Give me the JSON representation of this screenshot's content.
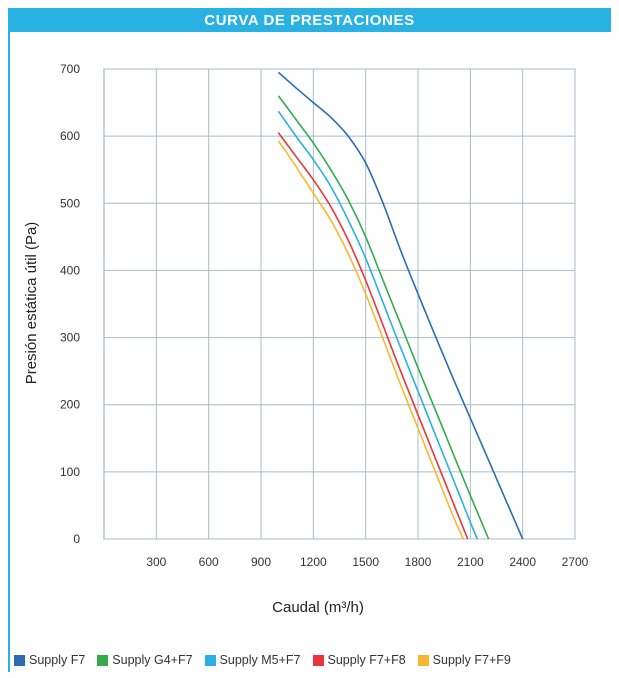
{
  "header": {
    "title": "CURVA DE PRESTACIONES"
  },
  "chart_data": {
    "type": "line",
    "title": "CURVA DE PRESTACIONES",
    "xlabel": "Caudal (m³/h)",
    "ylabel": "Presión estática útil (Pa)",
    "xlim": [
      0,
      2700
    ],
    "ylim": [
      0,
      700
    ],
    "xticks": [
      300,
      600,
      900,
      1200,
      1500,
      1800,
      2100,
      2400,
      2700
    ],
    "yticks": [
      0,
      100,
      200,
      300,
      400,
      500,
      600,
      700
    ],
    "grid": true,
    "legend_position": "bottom",
    "series": [
      {
        "name": "Supply F7",
        "color": "#2a6db5",
        "points": [
          [
            1000,
            695
          ],
          [
            1100,
            672
          ],
          [
            1200,
            650
          ],
          [
            1300,
            628
          ],
          [
            1400,
            600
          ],
          [
            1500,
            560
          ],
          [
            1600,
            500
          ],
          [
            1700,
            430
          ],
          [
            1800,
            365
          ],
          [
            1900,
            302
          ],
          [
            2000,
            240
          ],
          [
            2100,
            180
          ],
          [
            2200,
            120
          ],
          [
            2300,
            60
          ],
          [
            2400,
            0
          ]
        ]
      },
      {
        "name": "Supply G4+F7",
        "color": "#33ac4e",
        "points": [
          [
            1000,
            660
          ],
          [
            1100,
            625
          ],
          [
            1200,
            590
          ],
          [
            1300,
            550
          ],
          [
            1400,
            505
          ],
          [
            1500,
            450
          ],
          [
            1600,
            385
          ],
          [
            1700,
            320
          ],
          [
            1800,
            255
          ],
          [
            1900,
            192
          ],
          [
            2000,
            128
          ],
          [
            2100,
            65
          ],
          [
            2205,
            0
          ]
        ]
      },
      {
        "name": "Supply M5+F7",
        "color": "#29b1e3",
        "points": [
          [
            1000,
            637
          ],
          [
            1100,
            600
          ],
          [
            1200,
            565
          ],
          [
            1300,
            525
          ],
          [
            1400,
            475
          ],
          [
            1500,
            418
          ],
          [
            1600,
            352
          ],
          [
            1700,
            285
          ],
          [
            1800,
            220
          ],
          [
            1900,
            155
          ],
          [
            2000,
            90
          ],
          [
            2100,
            25
          ],
          [
            2140,
            0
          ]
        ]
      },
      {
        "name": "Supply F7+F8",
        "color": "#e8363c",
        "points": [
          [
            1000,
            605
          ],
          [
            1100,
            570
          ],
          [
            1200,
            535
          ],
          [
            1300,
            495
          ],
          [
            1400,
            445
          ],
          [
            1500,
            385
          ],
          [
            1600,
            318
          ],
          [
            1700,
            250
          ],
          [
            1800,
            185
          ],
          [
            1900,
            120
          ],
          [
            2000,
            55
          ],
          [
            2085,
            0
          ]
        ]
      },
      {
        "name": "Supply F7+F9",
        "color": "#f7b733",
        "points": [
          [
            1000,
            593
          ],
          [
            1100,
            555
          ],
          [
            1200,
            515
          ],
          [
            1300,
            475
          ],
          [
            1400,
            425
          ],
          [
            1500,
            365
          ],
          [
            1600,
            298
          ],
          [
            1700,
            230
          ],
          [
            1800,
            165
          ],
          [
            1900,
            100
          ],
          [
            2000,
            35
          ],
          [
            2060,
            0
          ]
        ]
      }
    ]
  }
}
